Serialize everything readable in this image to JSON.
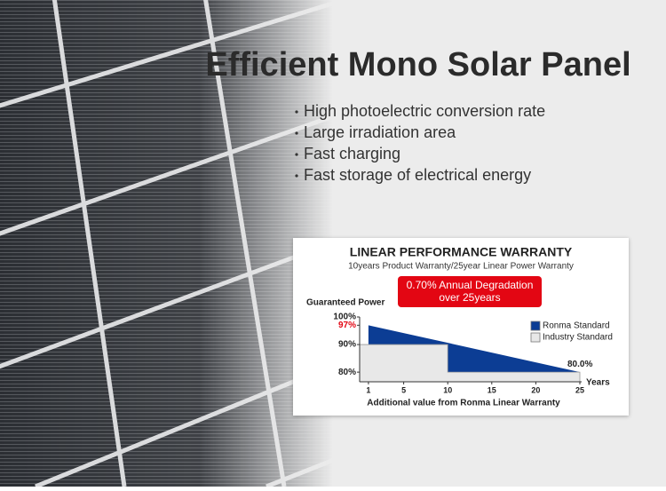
{
  "header": {
    "title": "Efficient Mono Solar Panel"
  },
  "features": [
    "High photoelectric conversion rate",
    "Large irradiation area",
    "Fast charging",
    "Fast storage of electrical energy"
  ],
  "chart_data": {
    "type": "area",
    "title": "LINEAR PERFORMANCE WARRANTY",
    "subtitle": "10years Product Warranty/25year Linear Power Warranty",
    "annotation": [
      "0.70% Annual Degradation",
      "over 25years"
    ],
    "y_label": "Guaranteed Power",
    "x_label": "Additional value from Ronma Linear Warranty",
    "x_unit": "Years",
    "xlim": [
      0,
      25
    ],
    "xticks": [
      1,
      5,
      10,
      15,
      20,
      25
    ],
    "ylim": [
      76.5,
      100
    ],
    "yticks": [
      {
        "value": 100,
        "label": "100%"
      },
      {
        "value": 97,
        "label": "97%",
        "color": "#e30613"
      },
      {
        "value": 90,
        "label": "90%"
      },
      {
        "value": 80,
        "label": "80%"
      }
    ],
    "legend": "top-right",
    "series": [
      {
        "name": "Ronma Standard",
        "color": "#0c3d94",
        "x": [
          1,
          25
        ],
        "values": [
          97,
          80.0
        ],
        "value_labels": [
          null,
          "80.0%"
        ]
      },
      {
        "name": "Industry Standard",
        "color": "#e8e8e8",
        "x": [
          0,
          10,
          10,
          25
        ],
        "values": [
          90,
          90,
          80,
          80
        ]
      }
    ]
  }
}
